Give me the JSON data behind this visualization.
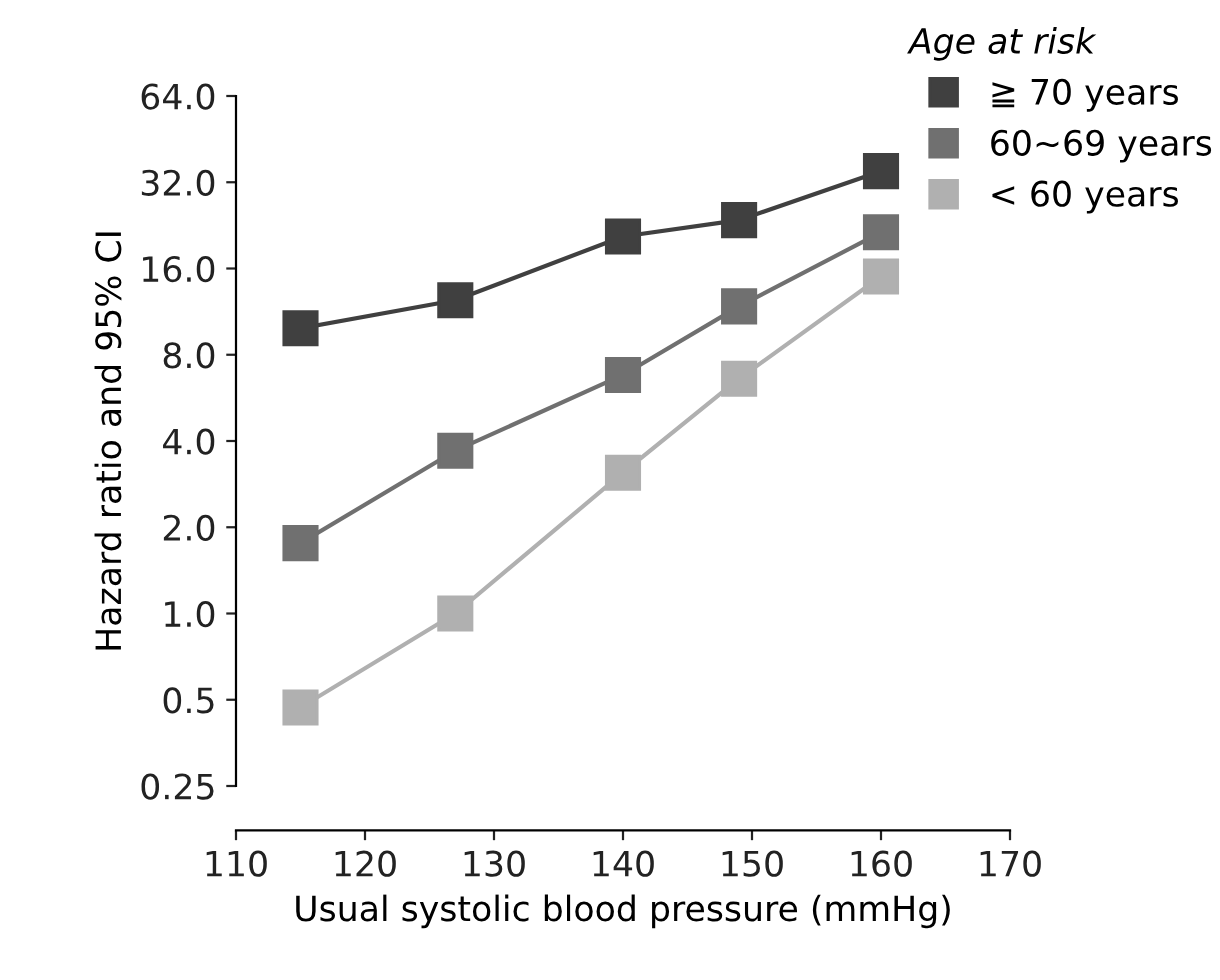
{
  "chart_data": {
    "type": "line",
    "x": [
      115,
      127,
      140,
      149,
      160
    ],
    "series": [
      {
        "name": "≧ 70 years",
        "color": "#404040",
        "values": [
          9.9,
          12.4,
          20.7,
          23.6,
          35
        ]
      },
      {
        "name": "60∼69 years",
        "color": "#707070",
        "values": [
          1.76,
          3.7,
          6.8,
          11.8,
          21.4
        ]
      },
      {
        "name": "< 60 years",
        "color": "#b0b0b0",
        "values": [
          0.47,
          1.0,
          3.1,
          6.6,
          15
        ]
      }
    ],
    "xlabel": "Usual systolic blood pressure (mmHg)",
    "ylabel": "Hazard ratio and 95% CI",
    "legend_title": "Age at risk",
    "log": "y",
    "xlim": [
      110,
      170
    ],
    "xticks": [
      110,
      120,
      130,
      140,
      150,
      160,
      170
    ],
    "ylim": [
      0.25,
      64
    ],
    "yticks": [
      {
        "value": 0.25,
        "label": "0.25"
      },
      {
        "value": 0.5,
        "label": "0.5"
      },
      {
        "value": 1,
        "label": "1.0"
      },
      {
        "value": 2,
        "label": "2.0"
      },
      {
        "value": 4,
        "label": "4.0"
      },
      {
        "value": 8,
        "label": "8.0"
      },
      {
        "value": 16,
        "label": "16.0"
      },
      {
        "value": 32,
        "label": "32.0"
      },
      {
        "value": 64,
        "label": "64.0"
      }
    ],
    "marker": "square",
    "line_style": "solid",
    "grid": false,
    "legend": "top right"
  }
}
